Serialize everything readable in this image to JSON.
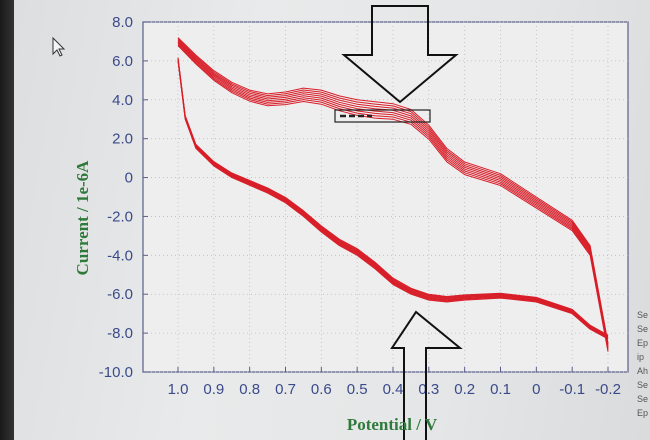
{
  "chart_data": {
    "type": "line",
    "xlabel": "Potential / V",
    "ylabel": "Current / 1e-6A",
    "xlim": [
      1.0,
      -0.2
    ],
    "ylim": [
      -10.0,
      8.0
    ],
    "x_ticks": [
      "1.0",
      "0.9",
      "0.8",
      "0.7",
      "0.6",
      "0.5",
      "0.4",
      "0.3",
      "0.2",
      "0.1",
      "0",
      "-0.1",
      "-0.2"
    ],
    "y_ticks": [
      "8.0",
      "6.0",
      "4.0",
      "2.0",
      "0",
      "-2.0",
      "-4.0",
      "-6.0",
      "-8.0",
      "-10.0"
    ],
    "grid": true,
    "series_color": "#d81e28",
    "upper_branch": {
      "x": [
        1.0,
        0.95,
        0.9,
        0.85,
        0.8,
        0.75,
        0.7,
        0.65,
        0.6,
        0.55,
        0.5,
        0.45,
        0.4,
        0.35,
        0.3,
        0.25,
        0.2,
        0.1,
        0.0,
        -0.1,
        -0.15,
        -0.2
      ],
      "y": [
        7.2,
        6.3,
        5.5,
        4.9,
        4.5,
        4.3,
        4.4,
        4.6,
        4.5,
        4.2,
        4.0,
        3.9,
        3.8,
        3.5,
        2.7,
        1.5,
        0.8,
        0.2,
        -1.0,
        -2.2,
        -3.5,
        -8.5
      ]
    },
    "lower_branch": {
      "x": [
        1.0,
        0.98,
        0.95,
        0.9,
        0.85,
        0.8,
        0.75,
        0.7,
        0.65,
        0.6,
        0.55,
        0.5,
        0.45,
        0.4,
        0.35,
        0.3,
        0.25,
        0.2,
        0.1,
        0.0,
        -0.1,
        -0.15,
        -0.2
      ],
      "y": [
        6.0,
        3.0,
        1.5,
        0.6,
        0.0,
        -0.4,
        -0.8,
        -1.3,
        -2.0,
        -2.8,
        -3.5,
        -4.0,
        -4.7,
        -5.5,
        -6.0,
        -6.3,
        -6.4,
        -6.3,
        -6.2,
        -6.4,
        -7.0,
        -7.8,
        -8.3
      ]
    },
    "cycles": 8,
    "annotations": [
      "arrow pointing down at anodic peak near 0.3 V",
      "arrow pointing up at cathodic region near 0.3 V"
    ]
  },
  "side_text": [
    "Se",
    "Se",
    "Ep",
    "ip",
    "Ah",
    "Se",
    "Se",
    "Ep"
  ]
}
